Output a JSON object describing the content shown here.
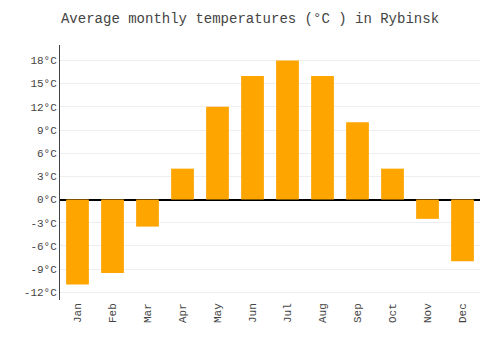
{
  "chart_data": {
    "type": "bar",
    "title": "Average monthly temperatures (°C ) in Rybinsk",
    "categories": [
      "Jan",
      "Feb",
      "Mar",
      "Apr",
      "May",
      "Jun",
      "Jul",
      "Aug",
      "Sep",
      "Oct",
      "Nov",
      "Dec"
    ],
    "values": [
      -11,
      -9.5,
      -3.5,
      4,
      12,
      16,
      18,
      16,
      10,
      4,
      -2.5,
      -8
    ],
    "color": "#FFA500",
    "ylim": [
      -13,
      20
    ],
    "yticks": [
      {
        "value": -12,
        "label": "-12°C"
      },
      {
        "value": -9,
        "label": "-9°C"
      },
      {
        "value": -6,
        "label": "-6°C"
      },
      {
        "value": -3,
        "label": "-3°C"
      },
      {
        "value": 0,
        "label": "0°C"
      },
      {
        "value": 3,
        "label": "3°C"
      },
      {
        "value": 6,
        "label": "6°C"
      },
      {
        "value": 9,
        "label": "9°C"
      },
      {
        "value": 12,
        "label": "12°C"
      },
      {
        "value": 15,
        "label": "15°C"
      },
      {
        "value": 18,
        "label": "18°C"
      }
    ],
    "grid": true
  }
}
